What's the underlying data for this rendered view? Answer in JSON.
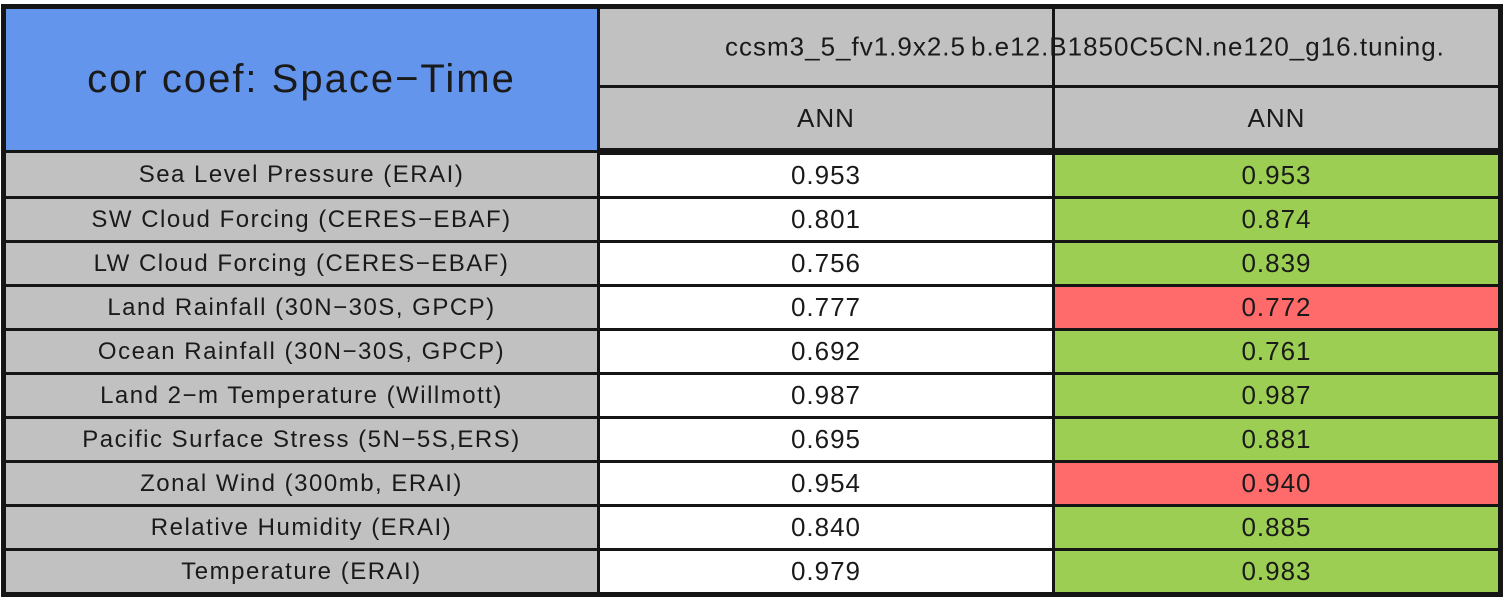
{
  "title": "cor coef: Space−Time",
  "columns": [
    {
      "model": "ccsm3_5_fv1.9x2.5",
      "season": "ANN"
    },
    {
      "model": "b.e12.B1850C5CN.ne120_g16.tuning.",
      "season": "ANN"
    }
  ],
  "rows": [
    {
      "label": "Sea Level Pressure (ERAI)",
      "values": [
        "0.953",
        "0.953"
      ],
      "colors": [
        "white",
        "green"
      ]
    },
    {
      "label": "SW Cloud Forcing (CERES−EBAF)",
      "values": [
        "0.801",
        "0.874"
      ],
      "colors": [
        "white",
        "green"
      ]
    },
    {
      "label": "LW Cloud Forcing (CERES−EBAF)",
      "values": [
        "0.756",
        "0.839"
      ],
      "colors": [
        "white",
        "green"
      ]
    },
    {
      "label": "Land Rainfall (30N−30S, GPCP)",
      "values": [
        "0.777",
        "0.772"
      ],
      "colors": [
        "white",
        "red"
      ]
    },
    {
      "label": "Ocean Rainfall (30N−30S, GPCP)",
      "values": [
        "0.692",
        "0.761"
      ],
      "colors": [
        "white",
        "green"
      ]
    },
    {
      "label": "Land 2−m Temperature (Willmott)",
      "values": [
        "0.987",
        "0.987"
      ],
      "colors": [
        "white",
        "green"
      ]
    },
    {
      "label": "Pacific Surface Stress (5N−5S,ERS)",
      "values": [
        "0.695",
        "0.881"
      ],
      "colors": [
        "white",
        "green"
      ]
    },
    {
      "label": "Zonal Wind (300mb, ERAI)",
      "values": [
        "0.954",
        "0.940"
      ],
      "colors": [
        "white",
        "red"
      ]
    },
    {
      "label": "Relative Humidity (ERAI)",
      "values": [
        "0.840",
        "0.885"
      ],
      "colors": [
        "white",
        "green"
      ]
    },
    {
      "label": "Temperature (ERAI)",
      "values": [
        "0.979",
        "0.983"
      ],
      "colors": [
        "white",
        "green"
      ]
    }
  ],
  "colors": {
    "title_bg": "#6495ED",
    "header_bg": "#C1C1C1",
    "label_bg": "#C1C1C1",
    "value_neutral_bg": "#FFFFFF",
    "value_better_bg": "#9BCE52",
    "value_worse_bg": "#FF6B6B",
    "border": "#151515",
    "text": "#1A1A1A"
  },
  "chart_data": {
    "type": "table",
    "title": "cor coef: Space−Time",
    "categories": [
      "Sea Level Pressure (ERAI)",
      "SW Cloud Forcing (CERES−EBAF)",
      "LW Cloud Forcing (CERES−EBAF)",
      "Land Rainfall (30N−30S, GPCP)",
      "Ocean Rainfall (30N−30S, GPCP)",
      "Land 2−m Temperature (Willmott)",
      "Pacific Surface Stress (5N−5S,ERS)",
      "Zonal Wind (300mb, ERAI)",
      "Relative Humidity (ERAI)",
      "Temperature (ERAI)"
    ],
    "series": [
      {
        "name": "ccsm3_5_fv1.9x2.5",
        "season": "ANN",
        "values": [
          0.953,
          0.801,
          0.756,
          0.777,
          0.692,
          0.987,
          0.695,
          0.954,
          0.84,
          0.979
        ],
        "cell_colors": [
          "white",
          "white",
          "white",
          "white",
          "white",
          "white",
          "white",
          "white",
          "white",
          "white"
        ]
      },
      {
        "name": "b.e12.B1850C5CN.ne120_g16.tuning.",
        "season": "ANN",
        "values": [
          0.953,
          0.874,
          0.839,
          0.772,
          0.761,
          0.987,
          0.881,
          0.94,
          0.885,
          0.983
        ],
        "cell_colors": [
          "green",
          "green",
          "green",
          "red",
          "green",
          "green",
          "green",
          "red",
          "green",
          "green"
        ]
      }
    ],
    "layout": {
      "grid": true,
      "value_range": [
        0,
        1
      ]
    }
  }
}
